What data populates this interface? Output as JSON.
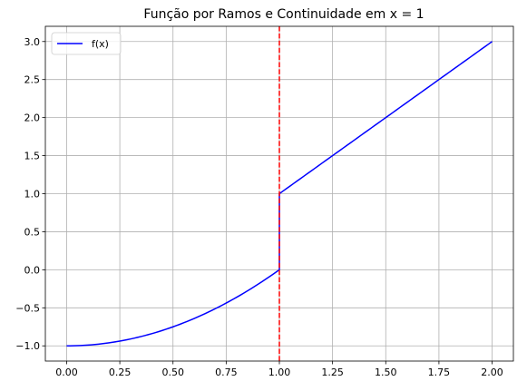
{
  "chart_data": {
    "type": "line",
    "title": "Função por Ramos e Continuidade em x = 1",
    "xlabel": "",
    "ylabel": "",
    "xlim": [
      -0.1,
      2.1
    ],
    "ylim": [
      -1.2,
      3.2
    ],
    "x_ticks": [
      "0.00",
      "0.25",
      "0.50",
      "0.75",
      "1.00",
      "1.25",
      "1.50",
      "1.75",
      "2.00"
    ],
    "y_ticks": [
      "−1.0",
      "−0.5",
      "0.0",
      "0.5",
      "1.0",
      "1.5",
      "2.0",
      "2.5",
      "3.0"
    ],
    "grid": true,
    "legend": {
      "position": "top-left"
    },
    "series": [
      {
        "name": "f(x)",
        "color": "#0000ff",
        "pieces": [
          {
            "formula": "x^2 - 1",
            "domain": [
              0,
              1
            ]
          },
          {
            "formula": "2x - 1",
            "domain": [
              1,
              2
            ]
          }
        ],
        "x": [
          0.0,
          0.1,
          0.2,
          0.3,
          0.4,
          0.5,
          0.6,
          0.7,
          0.8,
          0.9,
          1.0,
          1.0,
          1.5,
          2.0
        ],
        "y": [
          -1.0,
          -0.99,
          -0.96,
          -0.91,
          -0.84,
          -0.75,
          -0.64,
          -0.51,
          -0.36,
          -0.19,
          0.0,
          1.0,
          2.0,
          3.0
        ]
      }
    ],
    "vline": {
      "x": 1.0,
      "color": "#ff0000",
      "style": "dashed"
    }
  }
}
